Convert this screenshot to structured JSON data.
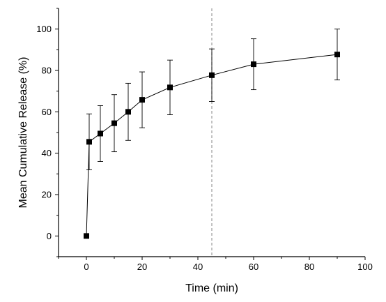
{
  "chart_data": {
    "type": "scatter",
    "title": "",
    "xlabel": "Time (min)",
    "ylabel": "Mean Cumulative Release (%)",
    "xlim": [
      -10,
      100
    ],
    "ylim": [
      -10,
      110
    ],
    "x_ticks": [
      0,
      20,
      40,
      60,
      80,
      100
    ],
    "y_ticks": [
      0,
      20,
      40,
      60,
      80,
      100
    ],
    "grid": false,
    "connected": true,
    "marker": "square",
    "reference_line_x": 45,
    "series": [
      {
        "color": "#000000",
        "x": [
          0,
          1,
          5,
          10,
          15,
          20,
          30,
          45,
          60,
          90
        ],
        "y": [
          0,
          45.5,
          49.5,
          54.5,
          60,
          65.8,
          71.8,
          77.7,
          83,
          87.7
        ],
        "error": [
          0,
          13.5,
          13.5,
          13.8,
          13.8,
          13.5,
          13.2,
          12.7,
          12.3,
          12.3
        ]
      }
    ]
  }
}
